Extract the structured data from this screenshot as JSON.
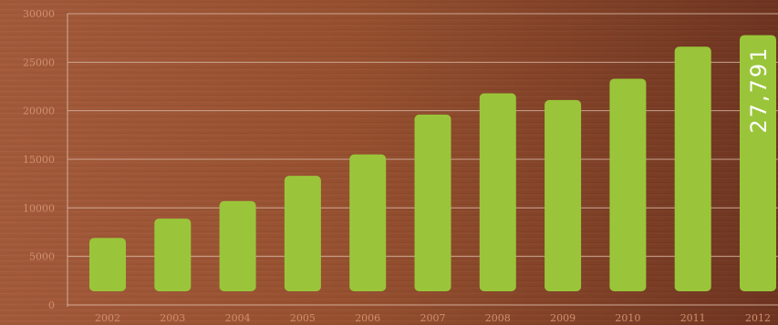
{
  "chart_data": {
    "type": "bar",
    "title": "",
    "xlabel": "",
    "ylabel": "",
    "categories": [
      "2002",
      "2003",
      "2004",
      "2005",
      "2006",
      "2007",
      "2008",
      "2009",
      "2010",
      "2011",
      "2012"
    ],
    "values": [
      6900,
      8900,
      10700,
      13300,
      15500,
      19600,
      21800,
      21100,
      23300,
      26600,
      27791
    ],
    "ylim": [
      0,
      30000
    ],
    "yticks": [
      0,
      5000,
      10000,
      15000,
      20000,
      25000,
      30000
    ],
    "grid": true,
    "annotation": {
      "text": "27,791",
      "category": "2012"
    },
    "colors": {
      "bar": "#9ac53a",
      "grid": "#d8b7a5",
      "tick_text": "#cf8f6f",
      "annotation_text": "#ffffff",
      "background_light": "#a35a3b",
      "background_dark": "#6e3420"
    }
  }
}
